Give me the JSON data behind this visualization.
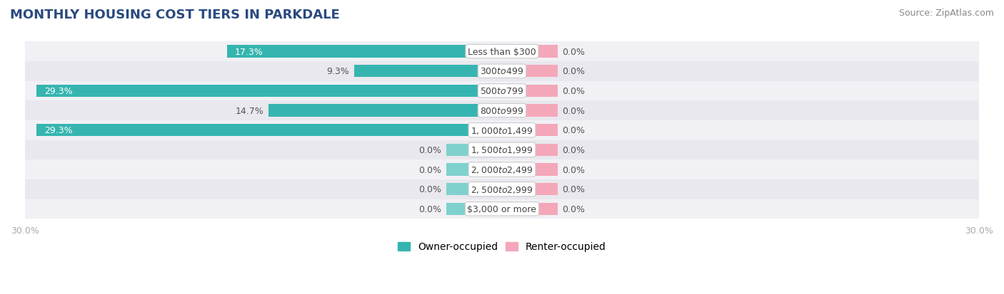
{
  "title": "MONTHLY HOUSING COST TIERS IN PARKDALE",
  "source": "Source: ZipAtlas.com",
  "categories": [
    "Less than $300",
    "$300 to $499",
    "$500 to $799",
    "$800 to $999",
    "$1,000 to $1,499",
    "$1,500 to $1,999",
    "$2,000 to $2,499",
    "$2,500 to $2,999",
    "$3,000 or more"
  ],
  "owner_values": [
    17.3,
    9.3,
    29.3,
    14.7,
    29.3,
    0.0,
    0.0,
    0.0,
    0.0
  ],
  "renter_values": [
    0.0,
    0.0,
    0.0,
    0.0,
    0.0,
    0.0,
    0.0,
    0.0,
    0.0
  ],
  "owner_color": "#36b5b0",
  "owner_color_light": "#7fd1ce",
  "renter_color": "#f4a7b9",
  "axis_max": 30.0,
  "bar_height": 0.62,
  "renter_stub": 3.5,
  "owner_stub": 3.5,
  "row_colors": [
    "#f0f0f5",
    "#e8e8ee"
  ],
  "title_fontsize": 13,
  "source_fontsize": 9,
  "legend_fontsize": 10,
  "axis_label_fontsize": 9,
  "bar_label_fontsize": 9,
  "category_label_fontsize": 9,
  "label_outside_color": "#555555",
  "label_inside_color": "#ffffff"
}
